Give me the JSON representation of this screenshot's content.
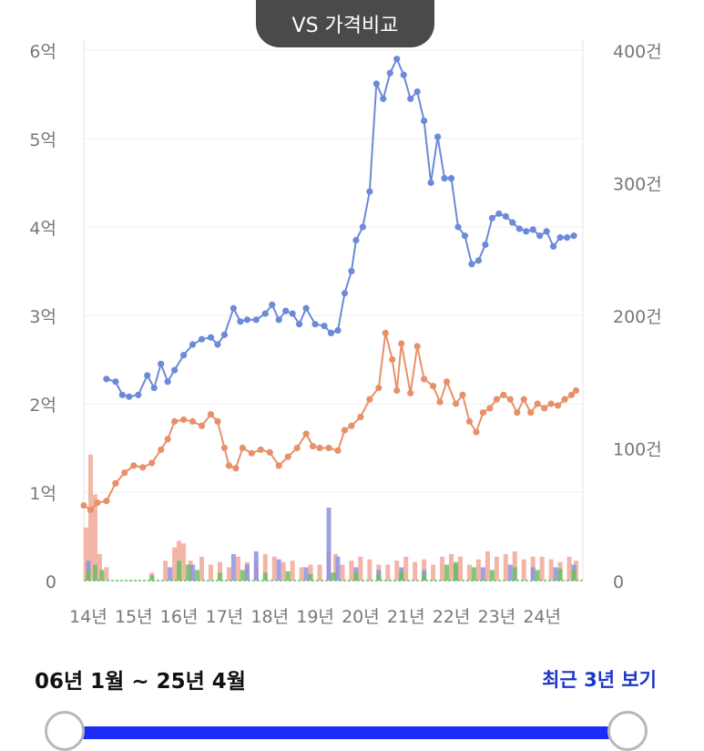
{
  "header": {
    "title": "VS 가격비교"
  },
  "range": {
    "label": "06년 1월 ~ 25년 4월",
    "recent_button": "최근 3년 보기"
  },
  "colors": {
    "price": "#6b8ad8",
    "price_alt": "#e8906a",
    "vol_a": "#f0a898",
    "vol_b": "#9090e0",
    "vol_c": "#6ac060",
    "slider": "#1a2cf5"
  },
  "chart_data": {
    "type": "line",
    "x_ticks": [
      "14년",
      "15년",
      "16년",
      "17년",
      "18년",
      "19년",
      "20년",
      "21년",
      "22년",
      "23년",
      "24년"
    ],
    "y_left": {
      "ticks": [
        "0",
        "1억",
        "2억",
        "3억",
        "4억",
        "5억",
        "6억"
      ],
      "range": [
        0,
        6
      ],
      "unit": "억"
    },
    "y_right": {
      "ticks": [
        "0",
        "100건",
        "200건",
        "300건",
        "400건"
      ],
      "range": [
        0,
        400
      ],
      "unit": "건"
    },
    "x_range": [
      2014,
      2025
    ],
    "series": [
      {
        "name": "price_blue",
        "axis": "left",
        "color": "#6b8ad8",
        "points": [
          [
            2014.5,
            2.28
          ],
          [
            2014.7,
            2.25
          ],
          [
            2014.85,
            2.1
          ],
          [
            2015.0,
            2.08
          ],
          [
            2015.2,
            2.1
          ],
          [
            2015.4,
            2.32
          ],
          [
            2015.55,
            2.18
          ],
          [
            2015.7,
            2.45
          ],
          [
            2015.85,
            2.25
          ],
          [
            2016.0,
            2.38
          ],
          [
            2016.2,
            2.55
          ],
          [
            2016.4,
            2.67
          ],
          [
            2016.6,
            2.73
          ],
          [
            2016.8,
            2.75
          ],
          [
            2016.95,
            2.67
          ],
          [
            2017.1,
            2.78
          ],
          [
            2017.3,
            3.08
          ],
          [
            2017.45,
            2.93
          ],
          [
            2017.6,
            2.95
          ],
          [
            2017.8,
            2.95
          ],
          [
            2018.0,
            3.02
          ],
          [
            2018.15,
            3.12
          ],
          [
            2018.3,
            2.95
          ],
          [
            2018.45,
            3.05
          ],
          [
            2018.6,
            3.02
          ],
          [
            2018.75,
            2.9
          ],
          [
            2018.9,
            3.08
          ],
          [
            2019.1,
            2.9
          ],
          [
            2019.3,
            2.88
          ],
          [
            2019.45,
            2.8
          ],
          [
            2019.6,
            2.83
          ],
          [
            2019.75,
            3.25
          ],
          [
            2019.9,
            3.5
          ],
          [
            2020.0,
            3.85
          ],
          [
            2020.15,
            4.0
          ],
          [
            2020.3,
            4.4
          ],
          [
            2020.45,
            5.62
          ],
          [
            2020.6,
            5.45
          ],
          [
            2020.75,
            5.74
          ],
          [
            2020.9,
            5.9
          ],
          [
            2021.05,
            5.72
          ],
          [
            2021.2,
            5.45
          ],
          [
            2021.35,
            5.53
          ],
          [
            2021.5,
            5.2
          ],
          [
            2021.65,
            4.5
          ],
          [
            2021.8,
            5.02
          ],
          [
            2021.95,
            4.55
          ],
          [
            2022.1,
            4.55
          ],
          [
            2022.25,
            4.0
          ],
          [
            2022.4,
            3.9
          ],
          [
            2022.55,
            3.58
          ],
          [
            2022.7,
            3.62
          ],
          [
            2022.85,
            3.8
          ],
          [
            2023.0,
            4.1
          ],
          [
            2023.15,
            4.15
          ],
          [
            2023.3,
            4.12
          ],
          [
            2023.45,
            4.05
          ],
          [
            2023.6,
            3.98
          ],
          [
            2023.75,
            3.95
          ],
          [
            2023.9,
            3.97
          ],
          [
            2024.05,
            3.9
          ],
          [
            2024.2,
            3.95
          ],
          [
            2024.35,
            3.78
          ],
          [
            2024.5,
            3.88
          ],
          [
            2024.65,
            3.88
          ],
          [
            2024.8,
            3.9
          ]
        ]
      },
      {
        "name": "price_orange",
        "axis": "left",
        "color": "#e8906a",
        "points": [
          [
            2014.0,
            0.85
          ],
          [
            2014.15,
            0.8
          ],
          [
            2014.3,
            0.88
          ],
          [
            2014.5,
            0.9
          ],
          [
            2014.7,
            1.1
          ],
          [
            2014.9,
            1.22
          ],
          [
            2015.1,
            1.3
          ],
          [
            2015.3,
            1.28
          ],
          [
            2015.5,
            1.33
          ],
          [
            2015.7,
            1.48
          ],
          [
            2015.85,
            1.6
          ],
          [
            2016.0,
            1.8
          ],
          [
            2016.2,
            1.82
          ],
          [
            2016.4,
            1.8
          ],
          [
            2016.6,
            1.75
          ],
          [
            2016.8,
            1.88
          ],
          [
            2016.95,
            1.8
          ],
          [
            2017.1,
            1.5
          ],
          [
            2017.2,
            1.3
          ],
          [
            2017.35,
            1.27
          ],
          [
            2017.5,
            1.5
          ],
          [
            2017.7,
            1.44
          ],
          [
            2017.9,
            1.48
          ],
          [
            2018.1,
            1.45
          ],
          [
            2018.3,
            1.3
          ],
          [
            2018.5,
            1.4
          ],
          [
            2018.7,
            1.5
          ],
          [
            2018.9,
            1.66
          ],
          [
            2019.05,
            1.52
          ],
          [
            2019.2,
            1.5
          ],
          [
            2019.4,
            1.5
          ],
          [
            2019.6,
            1.47
          ],
          [
            2019.75,
            1.7
          ],
          [
            2019.9,
            1.75
          ],
          [
            2020.1,
            1.85
          ],
          [
            2020.3,
            2.05
          ],
          [
            2020.5,
            2.18
          ],
          [
            2020.65,
            2.8
          ],
          [
            2020.8,
            2.5
          ],
          [
            2020.9,
            2.15
          ],
          [
            2021.0,
            2.68
          ],
          [
            2021.2,
            2.12
          ],
          [
            2021.35,
            2.65
          ],
          [
            2021.5,
            2.28
          ],
          [
            2021.7,
            2.2
          ],
          [
            2021.85,
            2.02
          ],
          [
            2022.0,
            2.25
          ],
          [
            2022.2,
            2.0
          ],
          [
            2022.35,
            2.1
          ],
          [
            2022.5,
            1.8
          ],
          [
            2022.65,
            1.68
          ],
          [
            2022.8,
            1.9
          ],
          [
            2022.95,
            1.95
          ],
          [
            2023.1,
            2.05
          ],
          [
            2023.25,
            2.1
          ],
          [
            2023.4,
            2.05
          ],
          [
            2023.55,
            1.9
          ],
          [
            2023.7,
            2.05
          ],
          [
            2023.85,
            1.9
          ],
          [
            2024.0,
            2.0
          ],
          [
            2024.15,
            1.95
          ],
          [
            2024.3,
            2.0
          ],
          [
            2024.45,
            1.98
          ],
          [
            2024.6,
            2.05
          ],
          [
            2024.75,
            2.1
          ],
          [
            2024.85,
            2.15
          ]
        ]
      }
    ],
    "volume_bars": {
      "axis": "right",
      "series": [
        {
          "name": "volume_salmon",
          "color": "#f0a898",
          "values": [
            [
              2014.05,
              40
            ],
            [
              2014.15,
              95
            ],
            [
              2014.25,
              65
            ],
            [
              2014.35,
              20
            ],
            [
              2014.5,
              10
            ],
            [
              2015.5,
              6
            ],
            [
              2015.8,
              15
            ],
            [
              2016.0,
              25
            ],
            [
              2016.1,
              30
            ],
            [
              2016.2,
              28
            ],
            [
              2016.35,
              15
            ],
            [
              2016.6,
              18
            ],
            [
              2016.8,
              12
            ],
            [
              2017.0,
              14
            ],
            [
              2017.2,
              10
            ],
            [
              2017.4,
              18
            ],
            [
              2017.6,
              14
            ],
            [
              2017.8,
              15
            ],
            [
              2018.0,
              20
            ],
            [
              2018.2,
              18
            ],
            [
              2018.4,
              14
            ],
            [
              2018.6,
              15
            ],
            [
              2018.8,
              10
            ],
            [
              2019.0,
              12
            ],
            [
              2019.2,
              12
            ],
            [
              2019.4,
              22
            ],
            [
              2019.55,
              20
            ],
            [
              2019.7,
              12
            ],
            [
              2019.9,
              15
            ],
            [
              2020.1,
              18
            ],
            [
              2020.3,
              16
            ],
            [
              2020.5,
              12
            ],
            [
              2020.7,
              12
            ],
            [
              2020.9,
              15
            ],
            [
              2021.1,
              18
            ],
            [
              2021.3,
              14
            ],
            [
              2021.5,
              16
            ],
            [
              2021.7,
              12
            ],
            [
              2021.9,
              18
            ],
            [
              2022.1,
              20
            ],
            [
              2022.3,
              18
            ],
            [
              2022.5,
              12
            ],
            [
              2022.7,
              16
            ],
            [
              2022.9,
              22
            ],
            [
              2023.1,
              18
            ],
            [
              2023.3,
              20
            ],
            [
              2023.5,
              22
            ],
            [
              2023.7,
              16
            ],
            [
              2023.9,
              18
            ],
            [
              2024.1,
              18
            ],
            [
              2024.3,
              16
            ],
            [
              2024.5,
              14
            ],
            [
              2024.7,
              18
            ],
            [
              2024.85,
              15
            ]
          ]
        },
        {
          "name": "volume_purple",
          "color": "#9090e0",
          "values": [
            [
              2014.1,
              15
            ],
            [
              2015.9,
              10
            ],
            [
              2016.4,
              12
            ],
            [
              2017.3,
              20
            ],
            [
              2017.6,
              12
            ],
            [
              2017.8,
              22
            ],
            [
              2018.3,
              16
            ],
            [
              2018.9,
              10
            ],
            [
              2019.4,
              55
            ],
            [
              2019.6,
              18
            ],
            [
              2020.0,
              10
            ],
            [
              2020.5,
              8
            ],
            [
              2021.0,
              10
            ],
            [
              2021.5,
              8
            ],
            [
              2022.2,
              12
            ],
            [
              2022.8,
              10
            ],
            [
              2023.4,
              12
            ],
            [
              2023.9,
              10
            ],
            [
              2024.4,
              10
            ],
            [
              2024.8,
              12
            ]
          ]
        },
        {
          "name": "volume_green",
          "color": "#6ac060",
          "values": [
            [
              2014.1,
              8
            ],
            [
              2014.25,
              12
            ],
            [
              2014.4,
              8
            ],
            [
              2015.5,
              4
            ],
            [
              2016.1,
              15
            ],
            [
              2016.3,
              12
            ],
            [
              2016.5,
              8
            ],
            [
              2017.0,
              6
            ],
            [
              2017.5,
              8
            ],
            [
              2018.0,
              6
            ],
            [
              2018.5,
              7
            ],
            [
              2019.0,
              5
            ],
            [
              2019.5,
              6
            ],
            [
              2020.0,
              6
            ],
            [
              2020.5,
              5
            ],
            [
              2021.0,
              7
            ],
            [
              2021.5,
              6
            ],
            [
              2022.0,
              12
            ],
            [
              2022.2,
              14
            ],
            [
              2022.6,
              10
            ],
            [
              2023.0,
              8
            ],
            [
              2023.5,
              10
            ],
            [
              2024.0,
              8
            ],
            [
              2024.5,
              9
            ],
            [
              2024.8,
              8
            ]
          ]
        }
      ]
    }
  }
}
